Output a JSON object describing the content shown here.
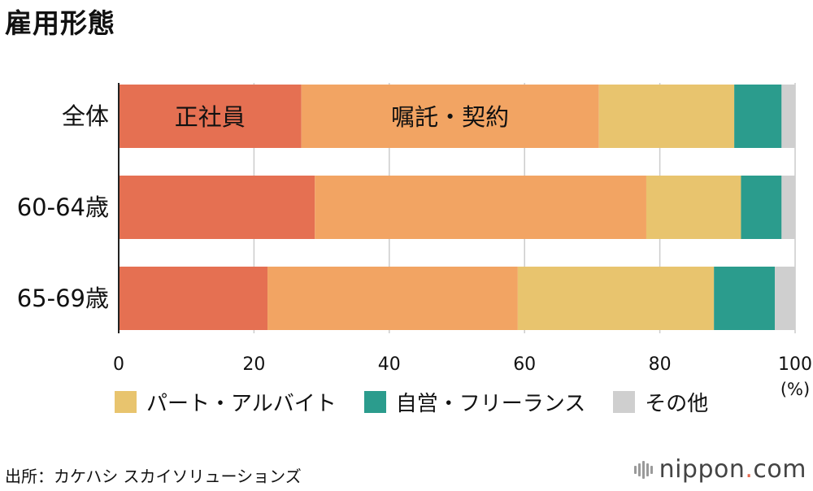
{
  "title": "雇用形態",
  "chart_data": {
    "type": "bar",
    "orientation": "horizontal",
    "stacked": true,
    "categories": [
      "全体",
      "60-64歳",
      "65-69歳"
    ],
    "series": [
      {
        "name": "正社員",
        "color": "#e57052",
        "values": [
          27,
          29,
          22
        ]
      },
      {
        "name": "嘱託・契約",
        "color": "#f2a463",
        "values": [
          44,
          49,
          37
        ]
      },
      {
        "name": "パート・アルバイト",
        "color": "#e8c46e",
        "values": [
          20,
          14,
          29
        ]
      },
      {
        "name": "自営・フリーランス",
        "color": "#2b9c8d",
        "values": [
          7,
          6,
          9
        ]
      },
      {
        "name": "その他",
        "color": "#cfcfcf",
        "values": [
          2,
          2,
          3
        ]
      }
    ],
    "xlim": [
      0,
      100
    ],
    "xticks": [
      "0",
      "20",
      "40",
      "60",
      "80",
      "100"
    ],
    "xunit": "(%)",
    "grid": true,
    "inline_labels": [
      "正社員",
      "嘱託・契約"
    ],
    "legend": [
      "パート・アルバイト",
      "自営・フリーランス",
      "その他"
    ],
    "legend_position": "bottom"
  },
  "source": "出所：カケハシ スカイソリューションズ",
  "logo": {
    "name": "nippon",
    "dot": ".",
    "suffix": "com"
  }
}
